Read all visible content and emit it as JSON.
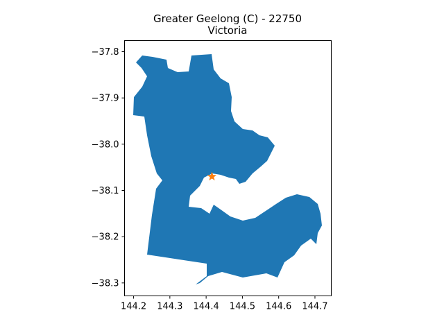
{
  "map": {
    "title": "Greater Geelong (C) - 22750",
    "subtitle": "Victoria",
    "region_color": "#1f77b4",
    "marker_color": "#ff7f0e",
    "marker_icon": "star-icon",
    "marker_lon": 144.416,
    "marker_lat": -38.07,
    "x_ticks": [
      "144.2",
      "144.3",
      "144.4",
      "144.5",
      "144.6",
      "144.7"
    ],
    "y_ticks": [
      "−37.8",
      "−37.9",
      "−38.0",
      "−38.1",
      "−38.2",
      "−38.3"
    ],
    "xlim": [
      144.175,
      144.745
    ],
    "ylim": [
      -38.328,
      -37.776
    ]
  }
}
